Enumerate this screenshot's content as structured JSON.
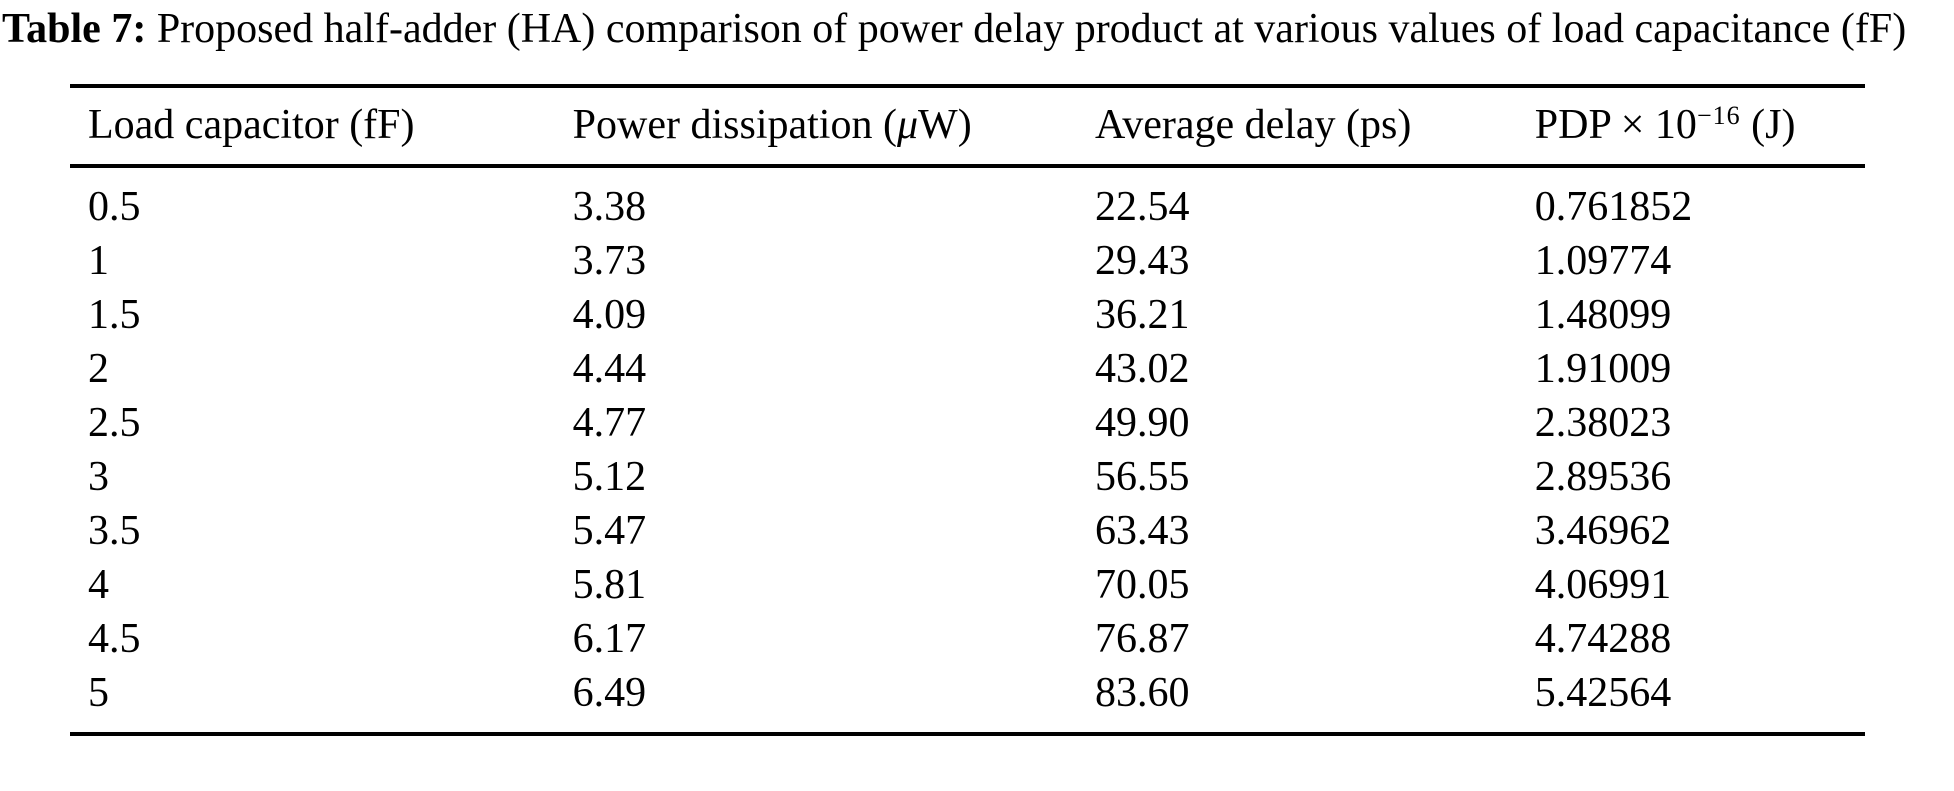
{
  "page": {
    "background_color": "#ffffff",
    "text_color": "#000000"
  },
  "caption": {
    "label": "Table 7:",
    "text": "Proposed half-adder (HA) comparison of power delay product at various values of load capacitance (fF)"
  },
  "table": {
    "headers": [
      {
        "pre": "Load capacitor (fF)",
        "italic": "",
        "sup": "",
        "post": ""
      },
      {
        "pre": "Power dissipation (",
        "italic": "μ",
        "sup": "",
        "post": "W)"
      },
      {
        "pre": "Average delay (ps)",
        "italic": "",
        "sup": "",
        "post": ""
      },
      {
        "pre": "PDP × 10",
        "italic": "",
        "sup": "−16",
        "post": " (J)"
      }
    ],
    "rows": [
      [
        "0.5",
        "3.38",
        "22.54",
        "0.761852"
      ],
      [
        "1",
        "3.73",
        "29.43",
        "1.09774"
      ],
      [
        "1.5",
        "4.09",
        "36.21",
        "1.48099"
      ],
      [
        "2",
        "4.44",
        "43.02",
        "1.91009"
      ],
      [
        "2.5",
        "4.77",
        "49.90",
        "2.38023"
      ],
      [
        "3",
        "5.12",
        "56.55",
        "2.89536"
      ],
      [
        "3.5",
        "5.47",
        "63.43",
        "3.46962"
      ],
      [
        "4",
        "5.81",
        "70.05",
        "4.06991"
      ],
      [
        "4.5",
        "6.17",
        "76.87",
        "4.74288"
      ],
      [
        "5",
        "6.49",
        "83.60",
        "5.42564"
      ]
    ]
  },
  "chart_data": {
    "type": "table",
    "title": "Table 7: Proposed half-adder (HA) comparison of power delay product at various values of load capacitance (fF)",
    "columns": [
      "Load capacitor (fF)",
      "Power dissipation (μW)",
      "Average delay (ps)",
      "PDP × 10−16 (J)"
    ],
    "load_capacitor_fF": [
      0.5,
      1,
      1.5,
      2,
      2.5,
      3,
      3.5,
      4,
      4.5,
      5
    ],
    "power_dissipation_uW": [
      3.38,
      3.73,
      4.09,
      4.44,
      4.77,
      5.12,
      5.47,
      5.81,
      6.17,
      6.49
    ],
    "average_delay_ps": [
      22.54,
      29.43,
      36.21,
      43.02,
      49.9,
      56.55,
      63.43,
      70.05,
      76.87,
      83.6
    ],
    "pdp_1e-16_J": [
      0.761852,
      1.09774,
      1.48099,
      1.91009,
      2.38023,
      2.89536,
      3.46962,
      4.06991,
      4.74288,
      5.42564
    ]
  }
}
